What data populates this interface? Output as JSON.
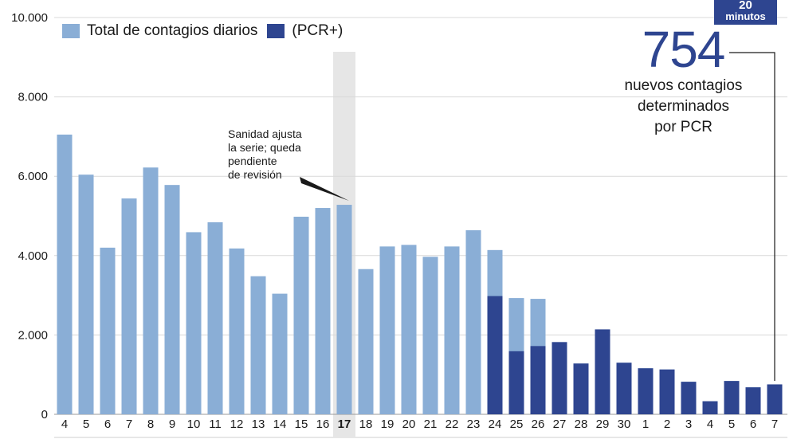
{
  "chart_data": {
    "type": "bar",
    "categories": [
      "4",
      "5",
      "6",
      "7",
      "8",
      "9",
      "10",
      "11",
      "12",
      "13",
      "14",
      "15",
      "16",
      "17",
      "18",
      "19",
      "20",
      "21",
      "22",
      "23",
      "24",
      "25",
      "26",
      "27",
      "28",
      "29",
      "30",
      "1",
      "2",
      "3",
      "4",
      "5",
      "6",
      "7"
    ],
    "highlight_category_index": 13,
    "series": [
      {
        "name": "Total de contagios diarios",
        "color": "#8aaed6",
        "values": [
          7050,
          6040,
          4200,
          5440,
          6220,
          5780,
          4590,
          4840,
          4180,
          3480,
          3040,
          4980,
          5200,
          5280,
          3660,
          4230,
          4270,
          3970,
          4230,
          4640,
          4140,
          2930,
          2910,
          1820,
          1280,
          2140,
          1300,
          1160,
          1130,
          820,
          330,
          840,
          680,
          754
        ]
      },
      {
        "name": "(PCR+)",
        "color": "#2e4590",
        "values": [
          null,
          null,
          null,
          null,
          null,
          null,
          null,
          null,
          null,
          null,
          null,
          null,
          null,
          null,
          null,
          null,
          null,
          null,
          null,
          null,
          2980,
          1590,
          1720,
          1820,
          1280,
          2140,
          1300,
          1160,
          1130,
          820,
          330,
          840,
          680,
          754
        ]
      }
    ],
    "yticks": [
      "0",
      "2.000",
      "4.000",
      "6.000",
      "8.000",
      "10.000"
    ],
    "ylim": [
      0,
      10000
    ],
    "grid": true,
    "legend_position": "top-left"
  },
  "legend": {
    "total_label": "Total de contagios diarios",
    "pcr_label": "(PCR+)"
  },
  "callout": {
    "number": "754",
    "text_line1": "nuevos contagios",
    "text_line2": "determinados",
    "text_line3": "por PCR"
  },
  "note": {
    "line1": "Sanidad ajusta",
    "line2": "la serie; queda",
    "line3": "pendiente",
    "line4": "de revisión"
  },
  "logo": {
    "number": "20",
    "text": "minutos"
  },
  "colors": {
    "light": "#8aaed6",
    "dark": "#2e4590",
    "highlight": "#e6e6e6",
    "grid": "#d9d9d9"
  }
}
